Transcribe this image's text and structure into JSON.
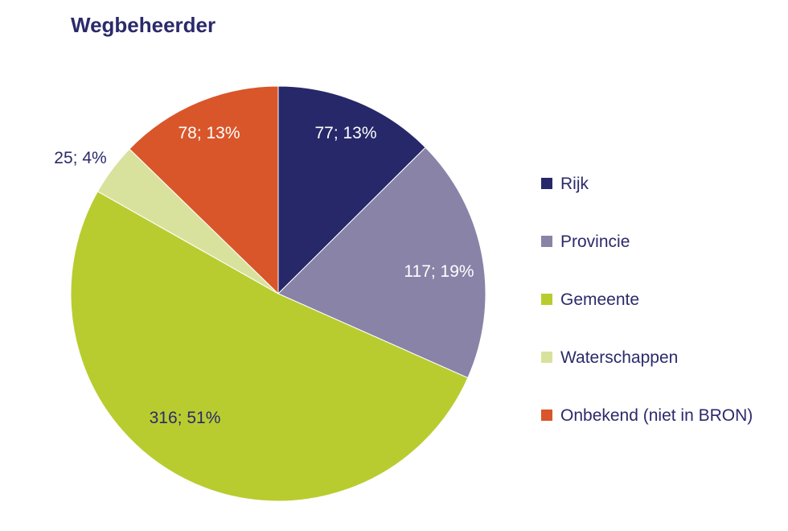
{
  "chart_data": {
    "type": "pie",
    "title": "Wegbeheerder",
    "slices": [
      {
        "name": "Rijk",
        "value": 77,
        "label": "77; 13%",
        "color": "#27286a",
        "label_color": "#ffffff"
      },
      {
        "name": "Provincie",
        "value": 117,
        "label": "117; 19%",
        "color": "#8883a7",
        "label_color": "#ffffff"
      },
      {
        "name": "Gemeente",
        "value": 316,
        "label": "316; 51%",
        "color": "#b8cc30",
        "label_color": "#2b2a6b"
      },
      {
        "name": "Waterschappen",
        "value": 25,
        "label": "25; 4%",
        "color": "#d9e29d",
        "label_color": "#2b2a6b"
      },
      {
        "name": "Onbekend (niet in BRON)",
        "value": 78,
        "label": "78; 13%",
        "color": "#d9562a",
        "label_color": "#ffffff"
      }
    ],
    "legend_position": "right"
  }
}
